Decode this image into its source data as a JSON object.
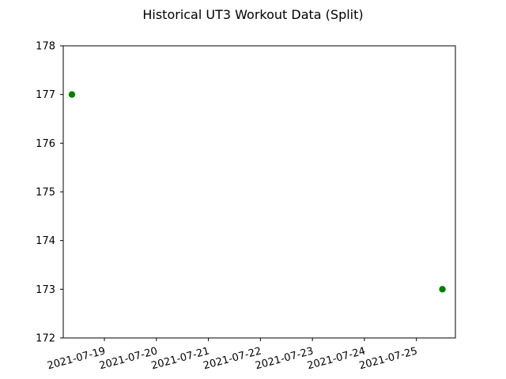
{
  "chart_data": {
    "type": "scatter",
    "title": "Historical UT3 Workout Data (Split)",
    "xlabel": "",
    "ylabel": "",
    "x_axis_type": "date",
    "x_ticks": [
      "2021-07-19",
      "2021-07-20",
      "2021-07-21",
      "2021-07-22",
      "2021-07-23",
      "2021-07-24",
      "2021-07-25"
    ],
    "xlim": [
      "2021-07-18T05:00",
      "2021-07-25T18:00"
    ],
    "y_ticks": [
      172,
      173,
      174,
      175,
      176,
      177,
      178
    ],
    "ylim": [
      172,
      178
    ],
    "grid": false,
    "series": [
      {
        "color": "#008000",
        "points": [
          {
            "x": "2021-07-18T09:00",
            "y": 177
          },
          {
            "x": "2021-07-25T12:00",
            "y": 173
          }
        ]
      }
    ]
  }
}
